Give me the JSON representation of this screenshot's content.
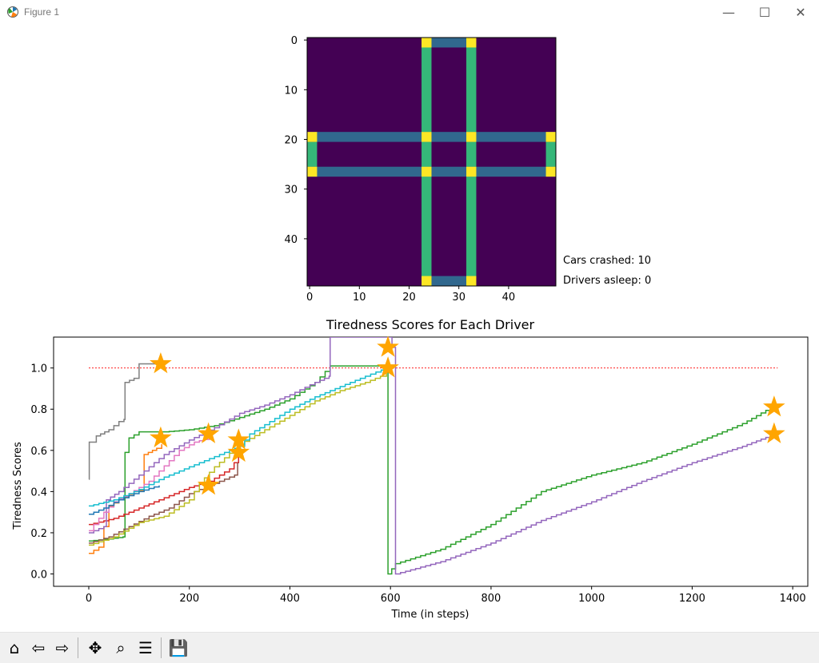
{
  "window": {
    "title": "Figure 1",
    "minimize": "—",
    "maximize": "☐",
    "close": "✕"
  },
  "heatmap": {
    "title": "",
    "xticks": [
      "0",
      "10",
      "20",
      "30",
      "40"
    ],
    "yticks": [
      "0",
      "10",
      "20",
      "30",
      "40"
    ],
    "grid_size": 50,
    "colors": {
      "background": "#440154",
      "road_vertical": "#35b779",
      "road_horizontal": "#31688e",
      "intersection": "#fde725"
    },
    "roads": {
      "vertical_columns": [
        [
          23,
          24
        ],
        [
          32,
          33
        ]
      ],
      "horizontal_rows": [
        [
          19,
          20
        ],
        [
          26,
          27
        ]
      ]
    }
  },
  "status": {
    "cars_crashed": "Cars crashed: 10",
    "drivers_asleep": "Drivers asleep: 0"
  },
  "chart_data": {
    "type": "line",
    "title": "Tiredness Scores for Each Driver",
    "xlabel": "Time (in steps)",
    "ylabel": "Tiredness Scores",
    "xlim": [
      -70,
      1430
    ],
    "ylim": [
      -0.06,
      1.15
    ],
    "xticks": [
      "0",
      "200",
      "400",
      "600",
      "800",
      "1000",
      "1200",
      "1400"
    ],
    "yticks": [
      "0.0",
      "0.2",
      "0.4",
      "0.6",
      "0.8",
      "1.0"
    ],
    "threshold": {
      "y": 1.0,
      "x": [
        0,
        1370
      ],
      "color": "#ff0000",
      "style": "dotted"
    },
    "series": [
      {
        "color": "#7f7f7f",
        "points": [
          [
            0,
            0.46
          ],
          [
            1,
            0.64
          ],
          [
            15,
            0.67
          ],
          [
            40,
            0.7
          ],
          [
            50,
            0.72
          ],
          [
            60,
            0.74
          ],
          [
            70,
            0.75
          ],
          [
            72,
            0.93
          ],
          [
            90,
            0.95
          ],
          [
            100,
            1.02
          ],
          [
            140,
            1.02
          ]
        ]
      },
      {
        "color": "#ff7f0e",
        "points": [
          [
            0,
            0.1
          ],
          [
            20,
            0.13
          ],
          [
            40,
            0.33
          ],
          [
            60,
            0.36
          ],
          [
            90,
            0.4
          ],
          [
            108,
            0.41
          ],
          [
            110,
            0.58
          ],
          [
            135,
            0.61
          ],
          [
            145,
            0.63
          ]
        ]
      },
      {
        "color": "#2ca02c",
        "points": [
          [
            0,
            0.16
          ],
          [
            40,
            0.17
          ],
          [
            68,
            0.18
          ],
          [
            72,
            0.59
          ],
          [
            80,
            0.66
          ],
          [
            100,
            0.69
          ],
          [
            150,
            0.69
          ],
          [
            200,
            0.7
          ],
          [
            250,
            0.72
          ],
          [
            300,
            0.76
          ],
          [
            350,
            0.8
          ],
          [
            400,
            0.85
          ],
          [
            450,
            0.93
          ],
          [
            480,
            1.01
          ],
          [
            590,
            1.01
          ],
          [
            595,
            0.0
          ],
          [
            610,
            0.05
          ],
          [
            700,
            0.12
          ],
          [
            800,
            0.24
          ],
          [
            900,
            0.4
          ],
          [
            1000,
            0.48
          ],
          [
            1100,
            0.54
          ],
          [
            1200,
            0.63
          ],
          [
            1300,
            0.73
          ],
          [
            1365,
            0.82
          ]
        ]
      },
      {
        "color": "#d62728",
        "points": [
          [
            0,
            0.24
          ],
          [
            50,
            0.27
          ],
          [
            100,
            0.32
          ],
          [
            150,
            0.37
          ],
          [
            200,
            0.42
          ],
          [
            240,
            0.45
          ],
          [
            280,
            0.51
          ],
          [
            298,
            0.57
          ]
        ]
      },
      {
        "color": "#9467bd",
        "points": [
          [
            0,
            0.2
          ],
          [
            30,
            0.23
          ],
          [
            35,
            0.36
          ],
          [
            60,
            0.4
          ],
          [
            80,
            0.44
          ],
          [
            100,
            0.48
          ],
          [
            150,
            0.58
          ],
          [
            200,
            0.65
          ],
          [
            250,
            0.71
          ],
          [
            300,
            0.78
          ],
          [
            350,
            0.82
          ],
          [
            400,
            0.87
          ],
          [
            450,
            0.93
          ],
          [
            478,
            0.96
          ],
          [
            480,
            1.15
          ],
          [
            600,
            1.15
          ],
          [
            603,
            1.1
          ],
          [
            610,
            0.0
          ],
          [
            700,
            0.06
          ],
          [
            800,
            0.15
          ],
          [
            900,
            0.26
          ],
          [
            1000,
            0.35
          ],
          [
            1100,
            0.45
          ],
          [
            1200,
            0.54
          ],
          [
            1300,
            0.62
          ],
          [
            1365,
            0.68
          ]
        ]
      },
      {
        "color": "#8c564b",
        "points": [
          [
            0,
            0.15
          ],
          [
            40,
            0.18
          ],
          [
            80,
            0.23
          ],
          [
            120,
            0.28
          ],
          [
            160,
            0.32
          ],
          [
            200,
            0.39
          ],
          [
            240,
            0.43
          ],
          [
            290,
            0.48
          ],
          [
            296,
            0.54
          ]
        ]
      },
      {
        "color": "#e377c2",
        "points": [
          [
            0,
            0.21
          ],
          [
            30,
            0.3
          ],
          [
            50,
            0.35
          ],
          [
            80,
            0.39
          ],
          [
            120,
            0.45
          ],
          [
            160,
            0.55
          ],
          [
            180,
            0.6
          ],
          [
            210,
            0.64
          ],
          [
            240,
            0.66
          ]
        ]
      },
      {
        "color": "#bcbd22",
        "points": [
          [
            0,
            0.14
          ],
          [
            50,
            0.18
          ],
          [
            100,
            0.25
          ],
          [
            150,
            0.28
          ],
          [
            200,
            0.36
          ],
          [
            220,
            0.44
          ],
          [
            250,
            0.52
          ],
          [
            300,
            0.63
          ],
          [
            350,
            0.7
          ],
          [
            400,
            0.77
          ],
          [
            450,
            0.84
          ],
          [
            500,
            0.89
          ],
          [
            550,
            0.93
          ],
          [
            580,
            0.96
          ],
          [
            592,
            0.99
          ]
        ]
      },
      {
        "color": "#17becf",
        "points": [
          [
            0,
            0.33
          ],
          [
            50,
            0.36
          ],
          [
            100,
            0.41
          ],
          [
            150,
            0.47
          ],
          [
            200,
            0.52
          ],
          [
            250,
            0.57
          ],
          [
            300,
            0.62
          ],
          [
            320,
            0.68
          ],
          [
            360,
            0.74
          ],
          [
            400,
            0.8
          ],
          [
            450,
            0.86
          ],
          [
            500,
            0.91
          ],
          [
            550,
            0.96
          ],
          [
            592,
            1.0
          ]
        ]
      },
      {
        "color": "#1f77b4",
        "points": [
          [
            0,
            0.29
          ],
          [
            30,
            0.32
          ],
          [
            60,
            0.36
          ],
          [
            100,
            0.4
          ],
          [
            140,
            0.43
          ]
        ]
      }
    ],
    "markers": {
      "color": "#ffa500",
      "shape": "star",
      "points": [
        [
          143,
          1.02
        ],
        [
          143,
          0.66
        ],
        [
          238,
          0.68
        ],
        [
          238,
          0.43
        ],
        [
          298,
          0.65
        ],
        [
          298,
          0.59
        ],
        [
          595,
          1.1
        ],
        [
          595,
          1.0
        ],
        [
          1363,
          0.81
        ],
        [
          1363,
          0.68
        ]
      ]
    }
  },
  "toolbar": {
    "buttons": [
      {
        "name": "home-icon",
        "glyph": "⌂"
      },
      {
        "name": "back-icon",
        "glyph": "⇦"
      },
      {
        "name": "forward-icon",
        "glyph": "⇨"
      },
      {
        "name": "pan-icon",
        "glyph": "✥"
      },
      {
        "name": "zoom-icon",
        "glyph": "⌕"
      },
      {
        "name": "configure-subplots-icon",
        "glyph": "☰"
      },
      {
        "name": "save-icon",
        "glyph": "💾"
      }
    ]
  }
}
